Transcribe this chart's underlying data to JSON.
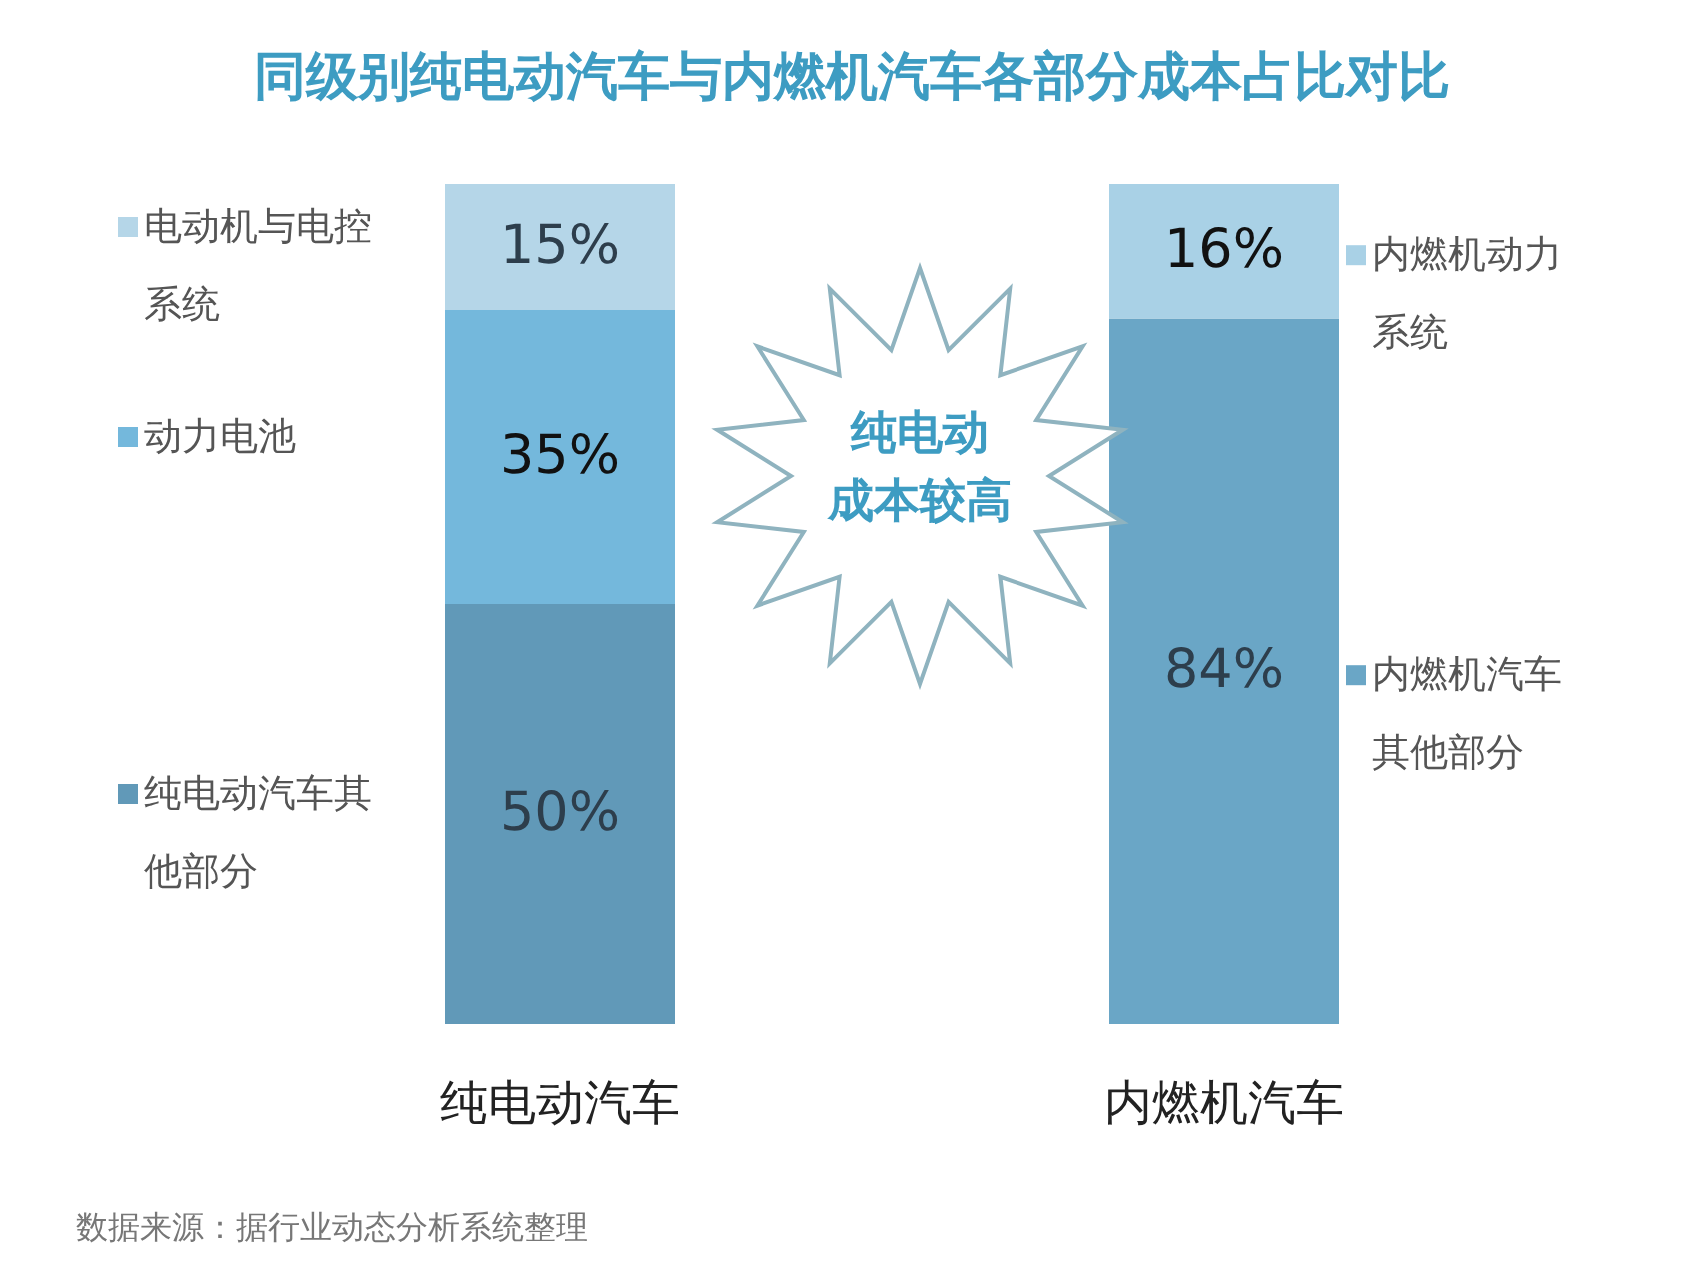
{
  "chart_data": {
    "type": "bar",
    "title": "同级别纯电动汽车与内燃机汽车各部分成本占比对比",
    "categories": [
      "纯电动汽车",
      "内燃机汽车"
    ],
    "stacked": true,
    "legend": "left",
    "series": [
      {
        "name": "纯电动汽车其他部分",
        "color": "#6199b8",
        "values": [
          50,
          null
        ],
        "value_labels": [
          "50%",
          null
        ]
      },
      {
        "name": "动力电池",
        "color": "#74b8dc",
        "values": [
          35,
          null
        ],
        "value_labels": [
          "35%",
          null
        ]
      },
      {
        "name": "电动机与电控系统",
        "color": "#b5d6e8",
        "values": [
          15,
          null
        ],
        "value_labels": [
          "15%",
          null
        ]
      },
      {
        "name": "内燃机汽车其他部分",
        "color": "#6aa6c6",
        "values": [
          null,
          84
        ],
        "value_labels": [
          null,
          "84%"
        ]
      },
      {
        "name": "内燃机动力系统",
        "color": "#a9d1e6",
        "values": [
          null,
          16
        ],
        "value_labels": [
          null,
          "16%"
        ]
      }
    ],
    "annotations": [
      "纯电动成本较高",
      "数据来源：据行业动态分析系统整理"
    ]
  }
}
